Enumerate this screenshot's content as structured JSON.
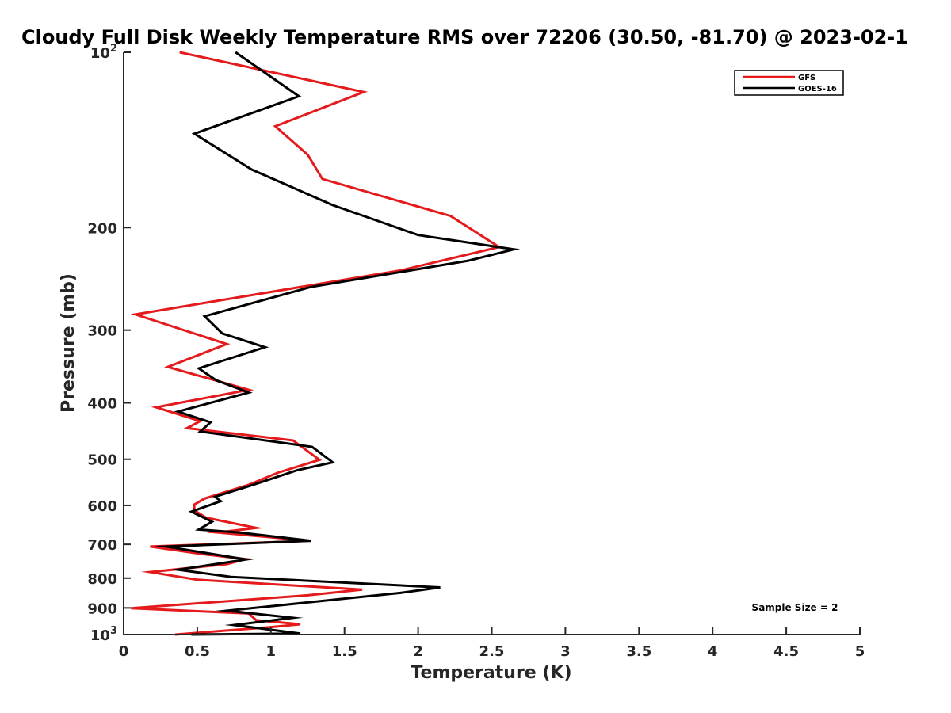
{
  "chart_data": {
    "type": "line",
    "title": "Cloudy Full Disk Weekly Temperature RMS over 72206 (30.50, -81.70) @ 2023-02-1",
    "xlabel": "Temperature (K)",
    "ylabel": "Pressure (mb)",
    "xlim": [
      0,
      5
    ],
    "ylim": [
      100,
      1000
    ],
    "yscale": "log",
    "yreversed": true,
    "grid": false,
    "legend_position": "top-right",
    "x_ticks": [
      "0",
      "0.5",
      "1",
      "1.5",
      "2",
      "2.5",
      "3",
      "3.5",
      "4",
      "4.5",
      "5"
    ],
    "y_ticks": [
      {
        "value": 100,
        "base": "10",
        "exp": "2"
      },
      {
        "value": 200,
        "label": "200"
      },
      {
        "value": 300,
        "label": "300"
      },
      {
        "value": 400,
        "label": "400"
      },
      {
        "value": 500,
        "label": "500"
      },
      {
        "value": 600,
        "label": "600"
      },
      {
        "value": 700,
        "label": "700"
      },
      {
        "value": 800,
        "label": "800"
      },
      {
        "value": 900,
        "label": "900"
      },
      {
        "value": 1000,
        "base": "10",
        "exp": "3"
      }
    ],
    "annotation": "Sample Size = 2",
    "series": [
      {
        "name": "GFS",
        "color": "#e41a1c",
        "points": [
          [
            0.38,
            100
          ],
          [
            1.63,
            117
          ],
          [
            1.03,
            134
          ],
          [
            1.25,
            150
          ],
          [
            1.35,
            165
          ],
          [
            2.22,
            191
          ],
          [
            2.55,
            216
          ],
          [
            1.88,
            237
          ],
          [
            0.72,
            265
          ],
          [
            0.08,
            282
          ],
          [
            0.7,
            317
          ],
          [
            0.3,
            347
          ],
          [
            0.85,
            380
          ],
          [
            0.22,
            407
          ],
          [
            0.52,
            430
          ],
          [
            0.43,
            442
          ],
          [
            1.15,
            464
          ],
          [
            1.33,
            501
          ],
          [
            1.05,
            527
          ],
          [
            0.85,
            553
          ],
          [
            0.55,
            584
          ],
          [
            0.48,
            598
          ],
          [
            0.48,
            612
          ],
          [
            0.56,
            630
          ],
          [
            0.9,
            656
          ],
          [
            0.64,
            668
          ],
          [
            1.27,
            690
          ],
          [
            0.18,
            706
          ],
          [
            0.53,
            727
          ],
          [
            0.83,
            742
          ],
          [
            0.7,
            757
          ],
          [
            0.18,
            781
          ],
          [
            0.5,
            805
          ],
          [
            1.62,
            837
          ],
          [
            1.25,
            856
          ],
          [
            0.05,
            901
          ],
          [
            0.85,
            920
          ],
          [
            0.9,
            945
          ],
          [
            1.2,
            960
          ],
          [
            1.0,
            971
          ],
          [
            0.35,
            1000
          ]
        ]
      },
      {
        "name": "GOES-16",
        "color": "#000000",
        "points": [
          [
            0.76,
            100
          ],
          [
            1.19,
            119
          ],
          [
            0.48,
            138
          ],
          [
            0.87,
            159
          ],
          [
            1.42,
            183
          ],
          [
            2.0,
            206
          ],
          [
            2.65,
            218
          ],
          [
            2.34,
            228
          ],
          [
            1.27,
            253
          ],
          [
            0.55,
            284
          ],
          [
            0.67,
            304
          ],
          [
            0.96,
            321
          ],
          [
            0.51,
            349
          ],
          [
            0.63,
            366
          ],
          [
            0.85,
            384
          ],
          [
            0.37,
            414
          ],
          [
            0.59,
            432
          ],
          [
            0.52,
            448
          ],
          [
            1.28,
            476
          ],
          [
            1.42,
            506
          ],
          [
            1.18,
            522
          ],
          [
            0.88,
            553
          ],
          [
            0.62,
            580
          ],
          [
            0.66,
            590
          ],
          [
            0.46,
            615
          ],
          [
            0.6,
            640
          ],
          [
            0.51,
            660
          ],
          [
            0.79,
            668
          ],
          [
            1.27,
            690
          ],
          [
            0.29,
            706
          ],
          [
            0.83,
            743
          ],
          [
            0.37,
            774
          ],
          [
            0.73,
            796
          ],
          [
            2.15,
            830
          ],
          [
            1.88,
            848
          ],
          [
            0.7,
            910
          ],
          [
            1.15,
            936
          ],
          [
            0.75,
            963
          ],
          [
            1.2,
            996
          ],
          [
            0.46,
            1000
          ]
        ]
      }
    ]
  }
}
